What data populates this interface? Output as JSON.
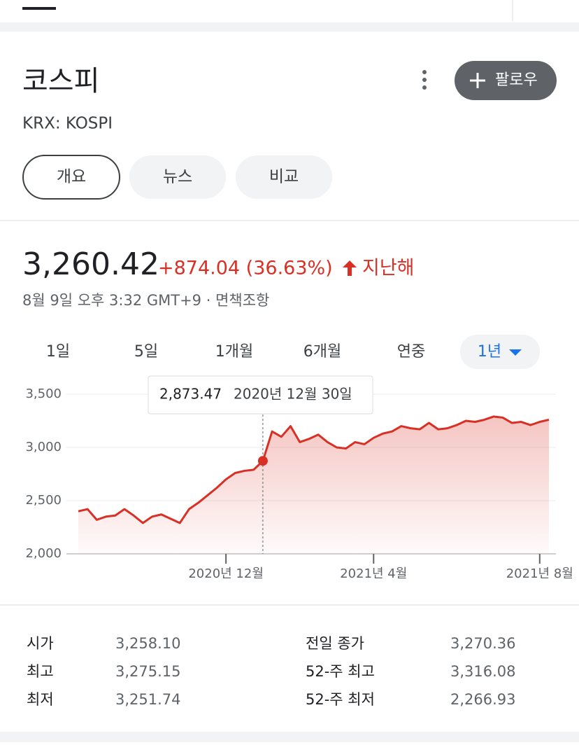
{
  "header": {
    "title": "코스피",
    "subtitle": "KRX: KOSPI",
    "follow": "팔로우"
  },
  "tabs": [
    "개요",
    "뉴스",
    "비교"
  ],
  "quote": {
    "price": "3,260.42",
    "change": "+874.04 (36.63%)",
    "period": "지난해",
    "timestamp": "8월 9일 오후 3:32 GMT+9 · 면책조항"
  },
  "ranges": [
    "1일",
    "5일",
    "1개월",
    "6개월",
    "연중",
    "1년"
  ],
  "chart_data": {
    "type": "line",
    "categories": [
      null,
      null,
      null,
      null,
      null,
      null,
      null,
      null,
      null,
      null,
      null,
      null,
      null,
      null,
      null,
      null,
      "2020년 12월",
      null,
      null,
      null,
      null,
      null,
      null,
      null,
      null,
      null,
      null,
      null,
      null,
      null,
      null,
      null,
      "2021년 4월",
      null,
      null,
      null,
      null,
      null,
      null,
      null,
      null,
      null,
      null,
      null,
      null,
      null,
      null,
      null,
      null,
      null,
      "2021년 8월",
      null
    ],
    "series": [
      {
        "name": "코스피",
        "color": "#d93025",
        "values": [
          2400,
          2420,
          2320,
          2350,
          2360,
          2420,
          2360,
          2290,
          2350,
          2370,
          2330,
          2290,
          2420,
          2480,
          2550,
          2620,
          2700,
          2760,
          2780,
          2790,
          2873.47,
          3150,
          3100,
          3200,
          3050,
          3080,
          3120,
          3050,
          3000,
          2990,
          3050,
          3030,
          3090,
          3130,
          3150,
          3200,
          3180,
          3170,
          3230,
          3170,
          3180,
          3210,
          3250,
          3240,
          3260,
          3290,
          3280,
          3230,
          3240,
          3210,
          3240,
          3260.42
        ],
        "value_labels": [
          null,
          null,
          null,
          null,
          null,
          null,
          null,
          null,
          null,
          null,
          null,
          null,
          null,
          null,
          null,
          null,
          null,
          null,
          null,
          null,
          "2,873.47",
          null,
          null,
          null,
          null,
          null,
          null,
          null,
          null,
          null,
          null,
          null,
          null,
          null,
          null,
          null,
          null,
          null,
          null,
          null,
          null,
          null,
          null,
          null,
          null,
          null,
          null,
          null,
          null,
          null,
          null,
          null
        ]
      }
    ],
    "tooltip_date": "2020년 12월 30일",
    "ylim": [
      2000,
      3500
    ],
    "yticks": [
      {
        "value": 2000,
        "label": "2,000"
      },
      {
        "value": 2500,
        "label": "2,500"
      },
      {
        "value": 3000,
        "label": "3,000"
      },
      {
        "value": 3500,
        "label": "3,500"
      }
    ],
    "grid": true
  },
  "stats": [
    [
      "시가",
      "3,258.10",
      "전일 종가",
      "3,270.36"
    ],
    [
      "최고",
      "3,275.15",
      "52-주 최고",
      "3,316.08"
    ],
    [
      "최저",
      "3,251.74",
      "52-주 최저",
      "2,266.93"
    ]
  ]
}
